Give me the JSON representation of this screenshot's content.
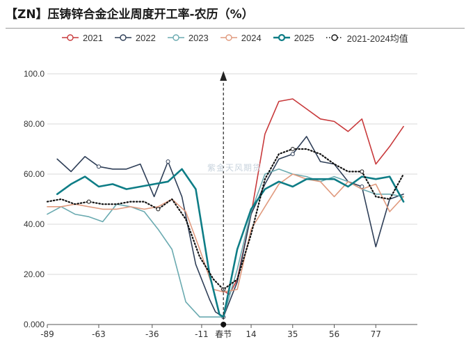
{
  "title": "【ZN】压铸锌合金企业周度开工率-农历（%）",
  "watermark": "紫金天风期货",
  "colors": {
    "2021": "#c8393b",
    "2022": "#2e3e57",
    "2023": "#6aaab0",
    "2024": "#e09a7e",
    "2025": "#0e7d86",
    "avg": "#111111"
  },
  "chart_data": {
    "type": "line",
    "title": "【ZN】压铸锌合金企业周度开工率-农历（%）",
    "xlabel": "",
    "ylabel": "",
    "xlim": [
      -89,
      98
    ],
    "ylim": [
      0,
      100
    ],
    "x_ticks": [
      "-89",
      "-63",
      "-36",
      "-11",
      "春节",
      "14",
      "35",
      "56",
      "77"
    ],
    "x_tick_values": [
      -89,
      -63,
      -36,
      -11,
      0,
      14,
      35,
      56,
      77
    ],
    "y_ticks": [
      "0.000",
      "20.00",
      "40.00",
      "60.00",
      "80.00",
      "100.0"
    ],
    "y_tick_values": [
      0,
      20,
      40,
      60,
      80,
      100
    ],
    "grid": "horizontal",
    "legend_position": "top",
    "annotation": {
      "label": "春节",
      "x": 0,
      "arrow_to": 100
    },
    "series": [
      {
        "name": "2021",
        "color_key": "2021",
        "style": "solid",
        "width": 1.6,
        "points": [
          [
            -1,
            14
          ],
          [
            3,
            12
          ],
          [
            7,
            18
          ],
          [
            14,
            44
          ],
          [
            21,
            76
          ],
          [
            28,
            89
          ],
          [
            35,
            90
          ],
          [
            42,
            86
          ],
          [
            49,
            82
          ],
          [
            56,
            81
          ],
          [
            63,
            77
          ],
          [
            70,
            82
          ],
          [
            77,
            64
          ],
          [
            84,
            71
          ],
          [
            91,
            79
          ]
        ]
      },
      {
        "name": "2022",
        "color_key": "2022",
        "style": "solid",
        "width": 1.6,
        "points": [
          [
            -84,
            66
          ],
          [
            -77,
            61
          ],
          [
            -70,
            67
          ],
          [
            -63,
            63
          ],
          [
            -56,
            62
          ],
          [
            -49,
            62
          ],
          [
            -42,
            64
          ],
          [
            -35,
            51
          ],
          [
            -28,
            65
          ],
          [
            -21,
            51
          ],
          [
            -14,
            24
          ],
          [
            -7,
            10
          ],
          [
            -4,
            5
          ],
          [
            0,
            3
          ],
          [
            7,
            17
          ],
          [
            14,
            44
          ],
          [
            21,
            56
          ],
          [
            28,
            66
          ],
          [
            35,
            68
          ],
          [
            42,
            75
          ],
          [
            49,
            65
          ],
          [
            56,
            64
          ],
          [
            63,
            57
          ],
          [
            70,
            55
          ],
          [
            77,
            31
          ],
          [
            84,
            50
          ],
          [
            91,
            52
          ]
        ]
      },
      {
        "name": "2023",
        "color_key": "2023",
        "style": "solid",
        "width": 1.6,
        "points": [
          [
            -89,
            44
          ],
          [
            -82,
            47
          ],
          [
            -75,
            44
          ],
          [
            -68,
            43
          ],
          [
            -61,
            41
          ],
          [
            -54,
            48
          ],
          [
            -47,
            47
          ],
          [
            -40,
            45
          ],
          [
            -33,
            38
          ],
          [
            -26,
            30
          ],
          [
            -19,
            9
          ],
          [
            -12,
            3
          ],
          [
            -5,
            3
          ],
          [
            0,
            3
          ],
          [
            7,
            22
          ],
          [
            14,
            45
          ],
          [
            21,
            60
          ],
          [
            28,
            62
          ],
          [
            35,
            60
          ],
          [
            42,
            59
          ],
          [
            49,
            57
          ],
          [
            56,
            59
          ],
          [
            63,
            57
          ],
          [
            70,
            54
          ],
          [
            77,
            52
          ],
          [
            84,
            52
          ],
          [
            91,
            51
          ]
        ]
      },
      {
        "name": "2024",
        "color_key": "2024",
        "style": "solid",
        "width": 1.6,
        "points": [
          [
            -89,
            47
          ],
          [
            -82,
            47
          ],
          [
            -75,
            48
          ],
          [
            -68,
            47
          ],
          [
            -61,
            46
          ],
          [
            -54,
            46
          ],
          [
            -47,
            47
          ],
          [
            -40,
            46
          ],
          [
            -33,
            47
          ],
          [
            -26,
            50
          ],
          [
            -19,
            45
          ],
          [
            -12,
            30
          ],
          [
            -5,
            14
          ],
          [
            0,
            13
          ],
          [
            7,
            14
          ],
          [
            14,
            38
          ],
          [
            21,
            47
          ],
          [
            28,
            56
          ],
          [
            35,
            60
          ],
          [
            42,
            58
          ],
          [
            49,
            57
          ],
          [
            56,
            51
          ],
          [
            63,
            57
          ],
          [
            70,
            54
          ],
          [
            77,
            56
          ],
          [
            84,
            45
          ],
          [
            91,
            51
          ]
        ]
      },
      {
        "name": "2025",
        "color_key": "2025",
        "style": "solid",
        "width": 2.6,
        "points": [
          [
            -84,
            52
          ],
          [
            -77,
            56
          ],
          [
            -70,
            59
          ],
          [
            -63,
            55
          ],
          [
            -56,
            56
          ],
          [
            -49,
            54
          ],
          [
            -42,
            55
          ],
          [
            -35,
            56
          ],
          [
            -28,
            57
          ],
          [
            -21,
            62
          ],
          [
            -14,
            54
          ],
          [
            -7,
            20
          ],
          [
            -2,
            4
          ],
          [
            0,
            3
          ],
          [
            7,
            30
          ],
          [
            14,
            46
          ],
          [
            21,
            54
          ],
          [
            28,
            57
          ],
          [
            35,
            55
          ],
          [
            42,
            58
          ],
          [
            49,
            58
          ],
          [
            56,
            58
          ],
          [
            63,
            55
          ],
          [
            70,
            59
          ],
          [
            77,
            58
          ],
          [
            84,
            59
          ],
          [
            91,
            49
          ]
        ]
      },
      {
        "name": "2021-2024均值",
        "color_key": "avg",
        "style": "dotted",
        "width": 2.2,
        "points": [
          [
            -89,
            49
          ],
          [
            -82,
            50
          ],
          [
            -75,
            48
          ],
          [
            -68,
            49
          ],
          [
            -61,
            48
          ],
          [
            -54,
            48
          ],
          [
            -47,
            49
          ],
          [
            -40,
            49
          ],
          [
            -33,
            46
          ],
          [
            -26,
            50
          ],
          [
            -19,
            42
          ],
          [
            -12,
            27
          ],
          [
            -5,
            18
          ],
          [
            0,
            14
          ],
          [
            7,
            18
          ],
          [
            14,
            36
          ],
          [
            21,
            58
          ],
          [
            28,
            68
          ],
          [
            35,
            70
          ],
          [
            42,
            70
          ],
          [
            49,
            68
          ],
          [
            56,
            64
          ],
          [
            63,
            61
          ],
          [
            70,
            61
          ],
          [
            77,
            51
          ],
          [
            84,
            50
          ],
          [
            91,
            60
          ]
        ]
      }
    ]
  }
}
